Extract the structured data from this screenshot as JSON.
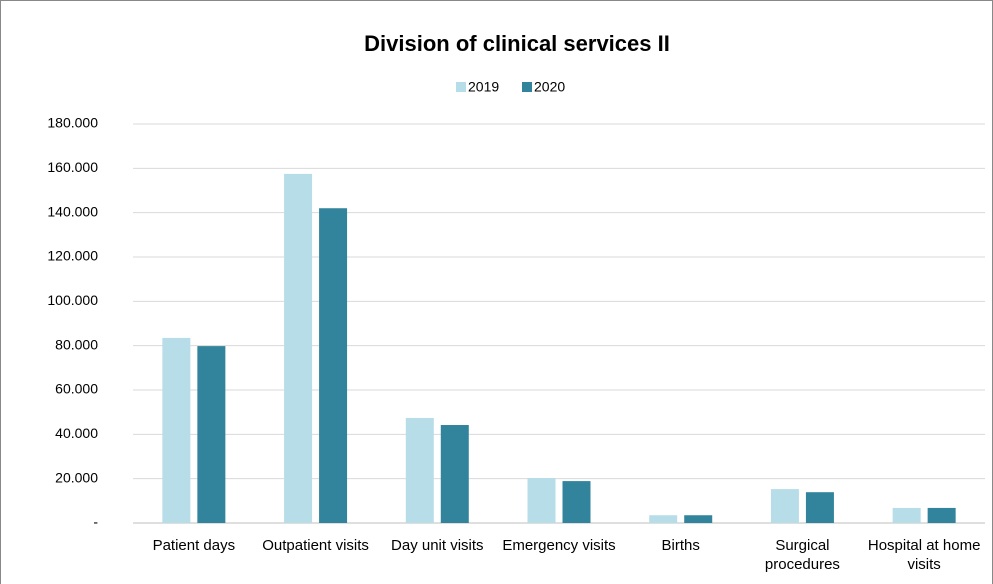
{
  "chart_data": {
    "type": "bar",
    "title": "Division of clinical services II",
    "categories": [
      "Patient days",
      "Outpatient visits",
      "Day unit visits",
      "Emergency visits",
      "Births",
      "Surgical procedures",
      "Hospital at home visits"
    ],
    "series": [
      {
        "name": "2019",
        "color": "#b7dde8",
        "values": [
          83500,
          157500,
          47400,
          20300,
          3500,
          15300,
          6800
        ]
      },
      {
        "name": "2020",
        "color": "#31849b",
        "values": [
          79800,
          142000,
          44200,
          18900,
          3500,
          13900,
          6800
        ]
      }
    ],
    "ylim": [
      0,
      180000
    ],
    "yticks": [
      {
        "value": 0,
        "label": "-"
      },
      {
        "value": 20000,
        "label": "20.000"
      },
      {
        "value": 40000,
        "label": "40.000"
      },
      {
        "value": 60000,
        "label": "60.000"
      },
      {
        "value": 80000,
        "label": "80.000"
      },
      {
        "value": 100000,
        "label": "100.000"
      },
      {
        "value": 120000,
        "label": "120.000"
      },
      {
        "value": 140000,
        "label": "140.000"
      },
      {
        "value": 160000,
        "label": "160.000"
      },
      {
        "value": 180000,
        "label": "180.000"
      }
    ],
    "grid": true,
    "legend": "top"
  }
}
